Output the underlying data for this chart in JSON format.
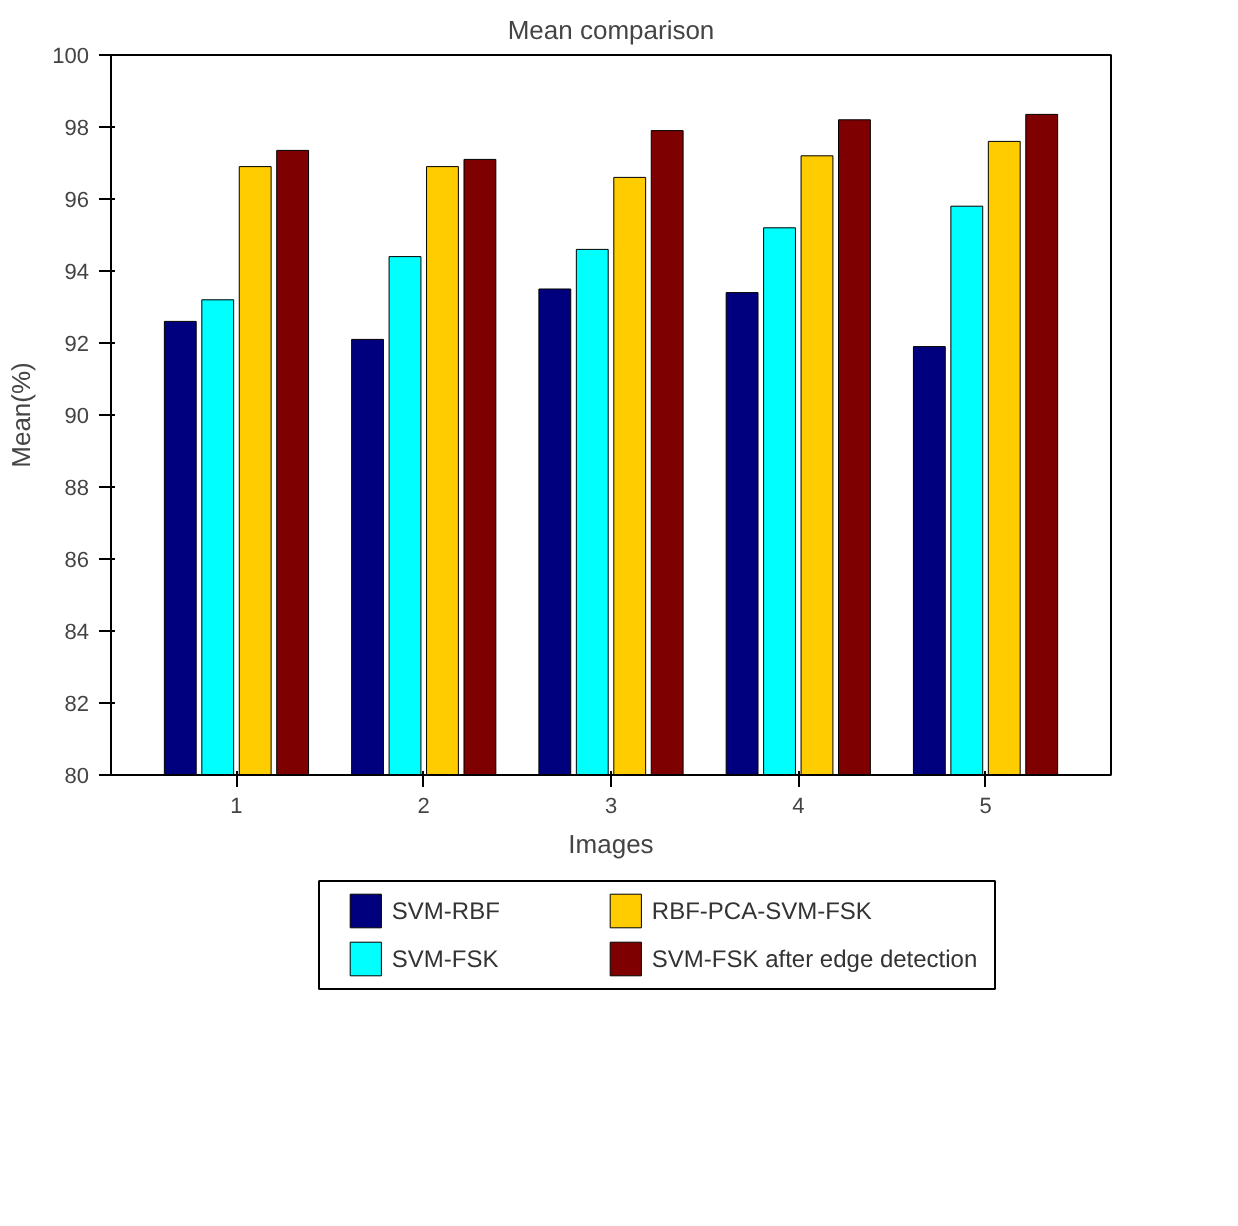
{
  "chart_data": {
    "type": "bar",
    "title": "Mean comparison",
    "xlabel": "Images",
    "ylabel": "Mean(%)",
    "categories": [
      "1",
      "2",
      "3",
      "4",
      "5"
    ],
    "ylim": [
      80,
      100
    ],
    "yticks": [
      80,
      82,
      84,
      86,
      88,
      90,
      92,
      94,
      96,
      98,
      100
    ],
    "grid": false,
    "legend": "bottom",
    "series": [
      {
        "name": "SVM-RBF",
        "color": "#00007f",
        "values": [
          92.6,
          92.1,
          93.5,
          93.4,
          91.9
        ]
      },
      {
        "name": "SVM-FSK",
        "color": "#00ffff",
        "values": [
          93.2,
          94.4,
          94.6,
          95.2,
          95.8
        ]
      },
      {
        "name": "RBF-PCA-SVM-FSK",
        "color": "#ffcc00",
        "values": [
          96.9,
          96.9,
          96.6,
          97.2,
          97.6
        ]
      },
      {
        "name": "SVM-FSK after edge detection",
        "color": "#7f0000",
        "values": [
          97.35,
          97.1,
          97.9,
          98.2,
          98.35
        ]
      }
    ]
  }
}
